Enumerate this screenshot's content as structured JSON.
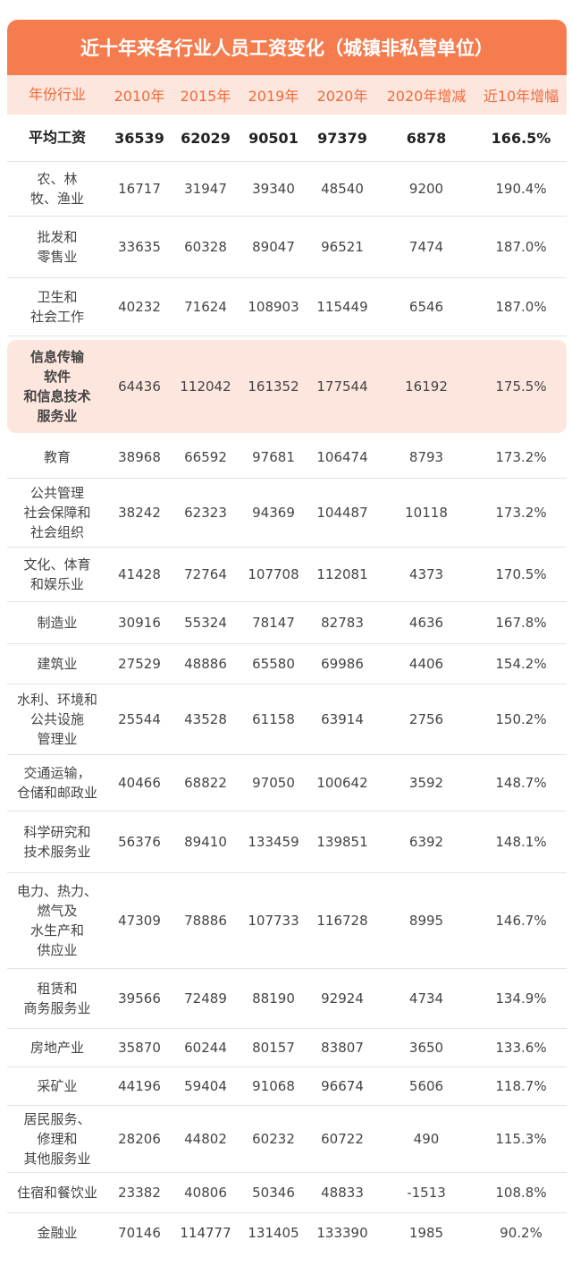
{
  "chart_data": {
    "type": "table",
    "title": "近十年来各行业人员工资变化（城镇非私营单位）",
    "columns": [
      "年份行业",
      "2010年",
      "2015年",
      "2019年",
      "2020年",
      "2020年增减",
      "近10年增幅"
    ],
    "rows": [
      {
        "name": "平均工资",
        "values": [
          "36539",
          "62029",
          "90501",
          "97379",
          "6878",
          "166.5%"
        ]
      },
      {
        "name": "农、林\n牧、渔业",
        "values": [
          "16717",
          "31947",
          "39340",
          "48540",
          "9200",
          "190.4%"
        ]
      },
      {
        "name": "批发和\n零售业",
        "values": [
          "33635",
          "60328",
          "89047",
          "96521",
          "7474",
          "187.0%"
        ]
      },
      {
        "name": "卫生和\n社会工作",
        "values": [
          "40232",
          "71624",
          "108903",
          "115449",
          "6546",
          "187.0%"
        ]
      },
      {
        "name": "信息传输\n软件\n和信息技术\n服务业",
        "values": [
          "64436",
          "112042",
          "161352",
          "177544",
          "16192",
          "175.5%"
        ]
      },
      {
        "name": "教育",
        "values": [
          "38968",
          "66592",
          "97681",
          "106474",
          "8793",
          "173.2%"
        ]
      },
      {
        "name": "公共管理\n社会保障和\n社会组织",
        "values": [
          "38242",
          "62323",
          "94369",
          "104487",
          "10118",
          "173.2%"
        ]
      },
      {
        "name": "文化、体育\n和娱乐业",
        "values": [
          "41428",
          "72764",
          "107708",
          "112081",
          "4373",
          "170.5%"
        ]
      },
      {
        "name": "制造业",
        "values": [
          "30916",
          "55324",
          "78147",
          "82783",
          "4636",
          "167.8%"
        ]
      },
      {
        "name": "建筑业",
        "values": [
          "27529",
          "48886",
          "65580",
          "69986",
          "4406",
          "154.2%"
        ]
      },
      {
        "name": "水利、环境和\n公共设施\n管理业",
        "values": [
          "25544",
          "43528",
          "61158",
          "63914",
          "2756",
          "150.2%"
        ]
      },
      {
        "name": "交通运输，\n仓储和邮政业",
        "values": [
          "40466",
          "68822",
          "97050",
          "100642",
          "3592",
          "148.7%"
        ]
      },
      {
        "name": "科学研究和\n技术服务业",
        "values": [
          "56376",
          "89410",
          "133459",
          "139851",
          "6392",
          "148.1%"
        ]
      },
      {
        "name": "电力、热力、\n燃气及\n水生产和\n供应业",
        "values": [
          "47309",
          "78886",
          "107733",
          "116728",
          "8995",
          "146.7%"
        ]
      },
      {
        "name": "租赁和\n商务服务业",
        "values": [
          "39566",
          "72489",
          "88190",
          "92924",
          "4734",
          "134.9%"
        ]
      },
      {
        "name": "房地产业",
        "values": [
          "35870",
          "60244",
          "80157",
          "83807",
          "3650",
          "133.6%"
        ]
      },
      {
        "name": "采矿业",
        "values": [
          "44196",
          "59404",
          "91068",
          "96674",
          "5606",
          "118.7%"
        ]
      },
      {
        "name": "居民服务、\n修理和\n其他服务业",
        "values": [
          "28206",
          "44802",
          "60232",
          "60722",
          "490",
          "115.3%"
        ]
      },
      {
        "name": "住宿和餐饮业",
        "values": [
          "23382",
          "40806",
          "50346",
          "48833",
          "-1513",
          "108.8%"
        ]
      },
      {
        "name": "金融业",
        "values": [
          "70146",
          "114777",
          "131405",
          "133390",
          "1985",
          "90.2%"
        ]
      }
    ],
    "colors": {
      "title_bg": "#f57c4f",
      "header_bg": "#fde6dd",
      "header_text": "#ef6a3c",
      "highlight_bg": "#fde6dd"
    }
  }
}
